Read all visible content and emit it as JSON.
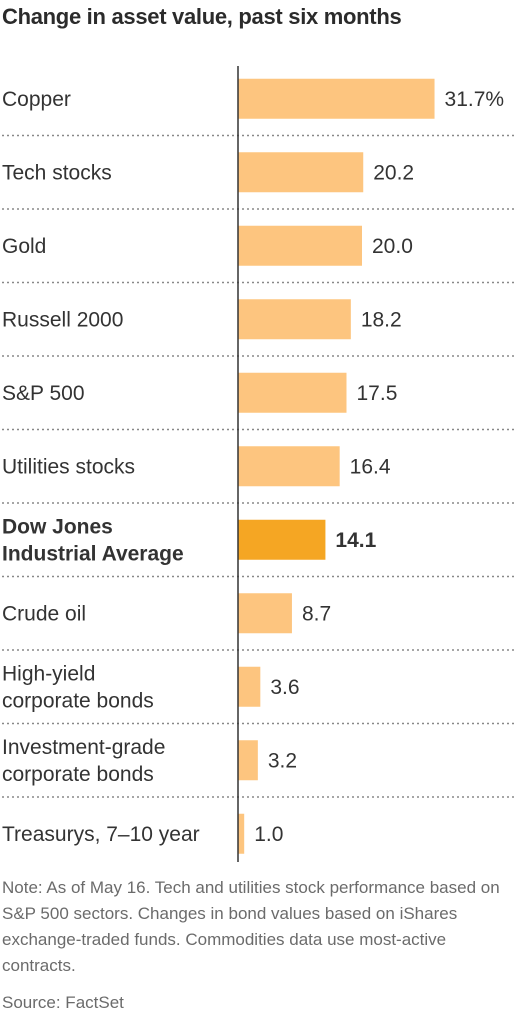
{
  "chart_data": {
    "type": "bar",
    "orientation": "horizontal",
    "title": "Change in asset value, past six months",
    "categories": [
      [
        "Copper"
      ],
      [
        "Tech stocks"
      ],
      [
        "Gold"
      ],
      [
        "Russell 2000"
      ],
      [
        "S&P 500"
      ],
      [
        "Utilities stocks"
      ],
      [
        "Dow Jones",
        "Industrial Average"
      ],
      [
        "Crude oil"
      ],
      [
        "High-yield",
        "corporate bonds"
      ],
      [
        "Investment-grade",
        "corporate bonds"
      ],
      [
        "Treasurys, 7–10 year"
      ]
    ],
    "values": [
      31.7,
      20.2,
      20.0,
      18.2,
      17.5,
      16.4,
      14.1,
      8.7,
      3.6,
      3.2,
      1.0
    ],
    "value_labels": [
      "31.7%",
      "20.2",
      "20.0",
      "18.2",
      "17.5",
      "16.4",
      "14.1",
      "8.7",
      "3.6",
      "3.2",
      "1.0"
    ],
    "highlight_index": 6,
    "colors": {
      "bar": "#fdc57f",
      "highlight": "#f5a623",
      "axis": "#333333",
      "separator": "#888888"
    }
  },
  "note": "Note: As of May 16. Tech and utilities stock performance based on S&P 500 sectors. Changes in bond values based on iShares exchange-traded funds. Commodities data use most-active contracts.",
  "source": "Source: FactSet"
}
